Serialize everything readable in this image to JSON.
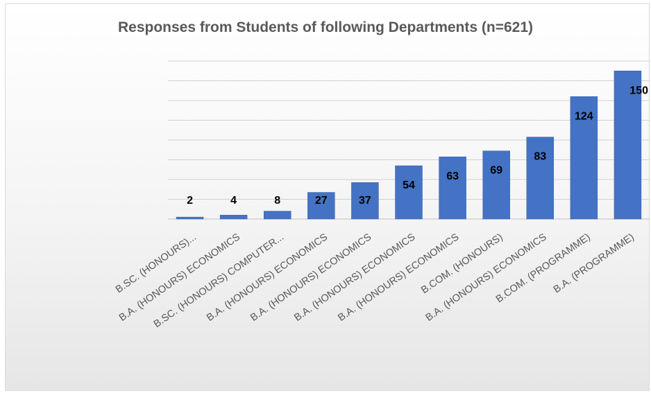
{
  "chart_data": {
    "type": "bar",
    "title": "Responses from Students of following Departments (n=621)",
    "xlabel": "",
    "ylabel": "",
    "ylim": [
      0,
      160
    ],
    "grid": true,
    "legend": "none",
    "categories": [
      "B.SC. (HONOURS)...",
      "B.A. (HONOURS) ECONOMICS",
      "B.SC. (HONOURS) COMPUTER...",
      "B.A. (HONOURS) ECONOMICS",
      "B.A. (HONOURS) ECONOMICS",
      "B.A. (HONOURS) ECONOMICS",
      "B.A. (HONOURS) ECONOMICS",
      "B.COM. (HONOURS)",
      "B.A. (HONOURS) ECONOMICS",
      "B.COM. (PROGRAMME)",
      "B.A. (PROGRAMME)"
    ],
    "values": [
      2,
      4,
      8,
      27,
      37,
      54,
      63,
      69,
      83,
      124,
      150
    ],
    "colors": {
      "bar": "#4472c4",
      "grid": "#d0d0d0",
      "axis": "#bfbfbf",
      "label": "#000000",
      "category": "#595959"
    }
  }
}
